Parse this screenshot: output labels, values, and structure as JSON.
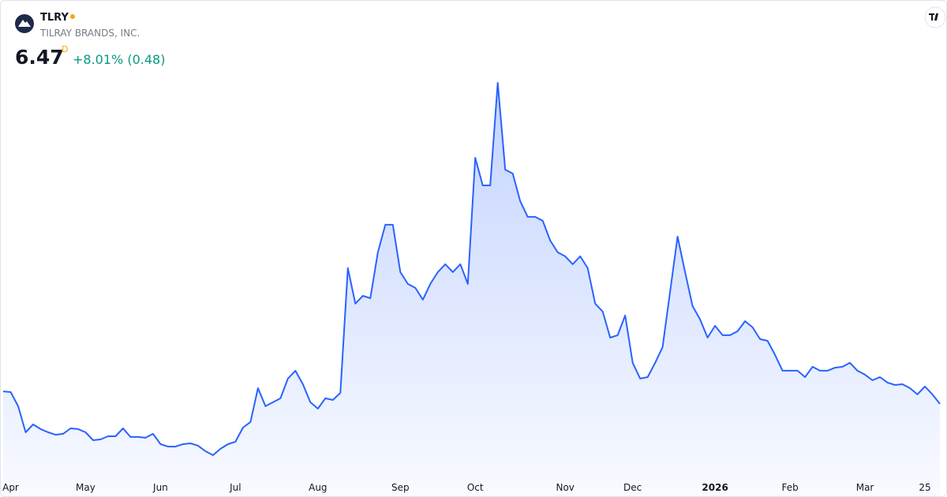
{
  "header": {
    "ticker": "TLRY",
    "company": "TILRAY BRANDS, INC.",
    "price": "6.47",
    "interval": "D",
    "change": "+8.01% (0.48)"
  },
  "chart_data": {
    "type": "line",
    "color": "#2962ff",
    "area": true,
    "categories": [
      null,
      "Apr",
      null,
      null,
      null,
      null,
      null,
      null,
      null,
      null,
      null,
      "May",
      null,
      null,
      null,
      null,
      null,
      null,
      null,
      null,
      null,
      "Jun",
      null,
      null,
      null,
      null,
      null,
      null,
      null,
      null,
      null,
      "Jul",
      null,
      null,
      null,
      null,
      null,
      null,
      null,
      null,
      null,
      null,
      "Aug",
      null,
      null,
      null,
      null,
      null,
      null,
      null,
      null,
      null,
      null,
      "Sep",
      null,
      null,
      null,
      null,
      null,
      null,
      null,
      null,
      null,
      "Oct",
      null,
      null,
      null,
      null,
      null,
      null,
      null,
      null,
      null,
      null,
      null,
      "Nov",
      null,
      null,
      null,
      null,
      null,
      null,
      null,
      null,
      "Dec",
      null,
      null,
      null,
      null,
      null,
      null,
      null,
      null,
      null,
      null,
      "2026",
      null,
      null,
      null,
      null,
      null,
      null,
      null,
      null,
      null,
      "Feb",
      null,
      null,
      null,
      null,
      null,
      null,
      null,
      null,
      null,
      "Mar",
      null,
      null,
      null,
      null,
      null,
      null,
      null,
      "25",
      null,
      null
    ],
    "values": [
      7.14,
      7.1,
      6.35,
      4.96,
      5.38,
      5.13,
      4.96,
      4.83,
      4.88,
      5.17,
      5.13,
      4.96,
      4.54,
      4.58,
      4.75,
      4.75,
      5.17,
      4.71,
      4.71,
      4.67,
      4.88,
      4.33,
      4.2,
      4.2,
      4.33,
      4.37,
      4.25,
      3.95,
      3.74,
      4.08,
      4.33,
      4.46,
      5.21,
      5.51,
      7.31,
      6.35,
      6.56,
      6.77,
      7.82,
      8.24,
      7.52,
      6.56,
      6.22,
      6.77,
      6.68,
      7.06,
      13.7,
      11.81,
      12.23,
      12.1,
      14.54,
      16.01,
      16.01,
      13.49,
      12.86,
      12.65,
      12.02,
      12.86,
      13.49,
      13.91,
      13.49,
      13.91,
      12.86,
      19.58,
      18.11,
      18.11,
      23.57,
      18.95,
      18.74,
      17.27,
      16.43,
      16.43,
      16.22,
      15.17,
      14.54,
      14.33,
      13.91,
      14.33,
      13.7,
      11.81,
      11.39,
      10.0,
      10.13,
      11.18,
      8.66,
      7.82,
      7.9,
      8.66,
      9.5,
      12.44,
      15.38,
      13.49,
      11.68,
      10.97,
      10.0,
      10.63,
      10.13,
      10.13,
      10.34,
      10.88,
      10.55,
      9.92,
      9.83,
      9.08,
      8.24,
      8.24,
      8.24,
      7.9,
      8.45,
      8.24,
      8.24,
      8.4,
      8.45,
      8.66,
      8.24,
      8.03,
      7.73,
      7.9,
      7.61,
      7.48,
      7.52,
      7.31,
      6.98,
      7.4,
      6.98,
      6.47
    ]
  }
}
